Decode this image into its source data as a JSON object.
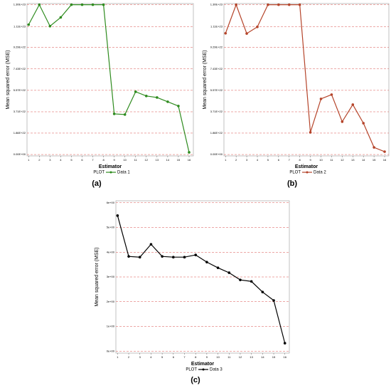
{
  "chart_data": [
    {
      "type": "line",
      "caption": "(a)",
      "xlabel": "Estimator",
      "ylabel": "Mean squared error (MSE)",
      "legend_title": "PLOT",
      "x": [
        1,
        2,
        3,
        4,
        5,
        6,
        7,
        8,
        9,
        10,
        11,
        12,
        13,
        14,
        15,
        16
      ],
      "series": [
        {
          "name": "Data 1",
          "color": "#2e8b1e",
          "values": [
            1.127e+23,
            1.3e+23,
            1.114e+23,
            1.19e+23,
            1.3e+23,
            1.3e+23,
            1.3e+23,
            1.3e+23,
            3.53e+22,
            3.47e+22,
            5.45e+22,
            5.08e+22,
            4.95e+22,
            4.58e+22,
            4.21e+22,
            1.9e+21
          ]
        }
      ],
      "xlim": [
        0.85,
        16.4
      ],
      "xticks": [
        1,
        2,
        3,
        4,
        5,
        6,
        7,
        8,
        9,
        10,
        11,
        12,
        13,
        14,
        15,
        16
      ],
      "ylim": [
        -1.2e+21,
        1.31e+23
      ],
      "yticks": [
        {
          "value": 0,
          "label": "0.00E+00"
        },
        {
          "value": 1.86e+22,
          "label": "1.86E+22"
        },
        {
          "value": 3.71e+22,
          "label": "3.71E+22"
        },
        {
          "value": 5.57e+22,
          "label": "5.57E+22"
        },
        {
          "value": 7.43e+22,
          "label": "7.43E+22"
        },
        {
          "value": 9.29e+22,
          "label": "9.29E+22"
        },
        {
          "value": 1.11e+23,
          "label": "1.11E+23"
        },
        {
          "value": 1.3e+23,
          "label": "1.30E+23"
        }
      ],
      "grid": true
    },
    {
      "type": "line",
      "caption": "(b)",
      "xlabel": "Estimator",
      "ylabel": "Mean squared error (MSE)",
      "legend_title": "PLOT",
      "x": [
        1,
        2,
        3,
        4,
        5,
        6,
        7,
        8,
        9,
        10,
        11,
        12,
        13,
        14,
        15,
        16
      ],
      "series": [
        {
          "name": "Data 2",
          "color": "#b5442a",
          "values": [
            1.052e+23,
            1.3e+23,
            1.05e+23,
            1.108e+23,
            1.3e+23,
            1.3e+23,
            1.3e+23,
            1.3e+23,
            1.92e+22,
            4.83e+22,
            5.2e+22,
            2.85e+22,
            4.33e+22,
            2.72e+22,
            6.2e+21,
            2.5e+21
          ]
        }
      ],
      "xlim": [
        0.85,
        16.4
      ],
      "xticks": [
        1,
        2,
        3,
        4,
        5,
        6,
        7,
        8,
        9,
        10,
        11,
        12,
        13,
        14,
        15,
        16
      ],
      "ylim": [
        -1.2e+21,
        1.31e+23
      ],
      "yticks": [
        {
          "value": 0,
          "label": "0.00E+00"
        },
        {
          "value": 1.86e+22,
          "label": "1.86E+22"
        },
        {
          "value": 3.71e+22,
          "label": "3.71E+22"
        },
        {
          "value": 5.57e+22,
          "label": "5.57E+22"
        },
        {
          "value": 7.43e+22,
          "label": "7.43E+22"
        },
        {
          "value": 9.29e+22,
          "label": "9.29E+22"
        },
        {
          "value": 1.11e+23,
          "label": "1.11E+23"
        },
        {
          "value": 1.3e+23,
          "label": "1.30E+23"
        }
      ],
      "grid": true
    },
    {
      "type": "line",
      "caption": "(c)",
      "xlabel": "Estimator",
      "ylabel": "Mean squared error (MSE)",
      "legend_title": "PLOT",
      "x": [
        1,
        2,
        3,
        4,
        5,
        6,
        7,
        8,
        9,
        10,
        11,
        12,
        13,
        14,
        15,
        16
      ],
      "series": [
        {
          "name": "Data 3",
          "color": "#000000",
          "values": [
            5.48,
            3.83,
            3.8,
            4.32,
            3.83,
            3.8,
            3.8,
            3.89,
            3.6,
            3.37,
            3.17,
            2.88,
            2.82,
            2.39,
            2.05,
            0.32
          ]
        }
      ],
      "xlim": [
        0.85,
        16.4
      ],
      "xticks": [
        1,
        2,
        3,
        4,
        5,
        6,
        7,
        8,
        9,
        10,
        11,
        12,
        13,
        14,
        15,
        16
      ],
      "ylim": [
        -0.08,
        6.08
      ],
      "yticks": [
        {
          "value": 0,
          "label": "0e+00"
        },
        {
          "value": 1,
          "label": "1e+00"
        },
        {
          "value": 2,
          "label": "2e+00"
        },
        {
          "value": 3,
          "label": "3e+00"
        },
        {
          "value": 4,
          "label": "4e+00"
        },
        {
          "value": 5,
          "label": "5e+00"
        },
        {
          "value": 6,
          "label": "6e+00"
        }
      ],
      "grid": true
    }
  ]
}
